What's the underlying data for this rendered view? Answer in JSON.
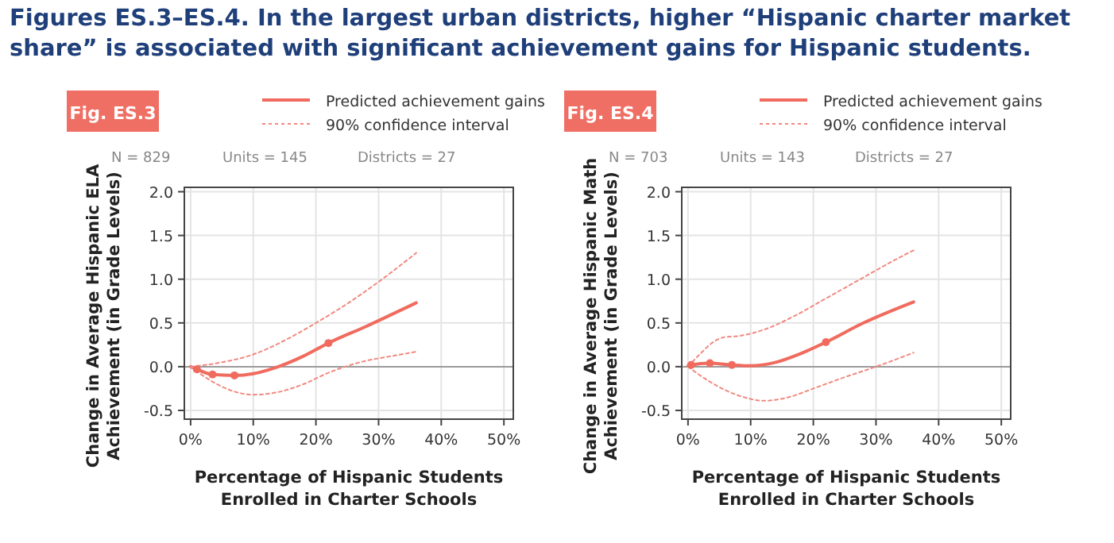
{
  "chart_data": [
    {
      "type": "line",
      "title": "Figures ES.3–ES.4. In the largest urban districts, higher “Hispanic charter market share” is associated with significant achievement gains for Hispanic students.",
      "subtitle": "Fig. ES.3",
      "annotations": [
        "N = 829",
        "Units = 145",
        "Districts = 27"
      ],
      "xlabel": "Percentage of Hispanic Students Enrolled in Charter Schools",
      "ylabel": "Change in Average Hispanic ELA Achievement (in Grade Levels)",
      "xlim": [
        -1,
        51.5
      ],
      "ylim": [
        -0.6,
        2.05
      ],
      "xticks": [
        {
          "value": 0,
          "label": "0%"
        },
        {
          "value": 10,
          "label": "10%"
        },
        {
          "value": 20,
          "label": "20%"
        },
        {
          "value": 30,
          "label": "30%"
        },
        {
          "value": 40,
          "label": "40%"
        },
        {
          "value": 50,
          "label": "50%"
        }
      ],
      "yticks": [
        {
          "value": -0.5,
          "label": "-0.5"
        },
        {
          "value": 0,
          "label": "0.0"
        },
        {
          "value": 0.5,
          "label": "0.5"
        },
        {
          "value": 1,
          "label": "1.0"
        },
        {
          "value": 1.5,
          "label": "1.5"
        },
        {
          "value": 2,
          "label": "2.0"
        }
      ],
      "grid": true,
      "legend": "top",
      "ref_lines": [
        {
          "axis": "y",
          "value": 0,
          "color": "#9a9a9a"
        }
      ],
      "series": [
        {
          "name": "Predicted achievement gains",
          "color": "#f06b5e",
          "line_style": "solid",
          "x": [
            0,
            1,
            3.5,
            7,
            10,
            14,
            18,
            22,
            28,
            36
          ],
          "values": [
            0,
            -0.03,
            -0.09,
            -0.1,
            -0.08,
            0,
            0.12,
            0.27,
            0.46,
            0.73
          ]
        },
        {
          "name": "90% confidence interval",
          "color": "#f08a80",
          "line_style": "dotted",
          "x": [
            0,
            5,
            10,
            15,
            20,
            25,
            30,
            36
          ],
          "values": [
            0,
            0.05,
            0.14,
            0.3,
            0.5,
            0.72,
            0.97,
            1.3
          ]
        },
        {
          "color": "#f08a80",
          "line_style": "dotted",
          "x": [
            0,
            3,
            6,
            10,
            14,
            18,
            22,
            27,
            32,
            36
          ],
          "values": [
            0,
            -0.15,
            -0.26,
            -0.32,
            -0.29,
            -0.2,
            -0.07,
            0.05,
            0.12,
            0.17
          ]
        },
        {
          "type": "scatter",
          "marker": "circle",
          "color": "#f06b5e",
          "x": [
            1,
            3.5,
            7,
            22
          ],
          "values": [
            -0.03,
            -0.09,
            -0.1,
            0.27
          ]
        }
      ]
    },
    {
      "type": "line",
      "subtitle": "Fig. ES.4",
      "annotations": [
        "N = 703",
        "Units = 143",
        "Districts = 27"
      ],
      "xlabel": "Percentage of Hispanic Students Enrolled in Charter Schools",
      "ylabel": "Change in Average Hispanic Math Achievement (in Grade Levels)",
      "xlim": [
        -1,
        51.5
      ],
      "ylim": [
        -0.6,
        2.05
      ],
      "xticks": [
        {
          "value": 0,
          "label": "0%"
        },
        {
          "value": 10,
          "label": "10%"
        },
        {
          "value": 20,
          "label": "20%"
        },
        {
          "value": 30,
          "label": "30%"
        },
        {
          "value": 40,
          "label": "40%"
        },
        {
          "value": 50,
          "label": "50%"
        }
      ],
      "yticks": [
        {
          "value": -0.5,
          "label": "-0.5"
        },
        {
          "value": 0,
          "label": "0.0"
        },
        {
          "value": 0.5,
          "label": "0.5"
        },
        {
          "value": 1,
          "label": "1.0"
        },
        {
          "value": 1.5,
          "label": "1.5"
        },
        {
          "value": 2,
          "label": "2.0"
        }
      ],
      "grid": true,
      "legend": "top",
      "ref_lines": [
        {
          "axis": "y",
          "value": 0,
          "color": "#9a9a9a"
        }
      ],
      "series": [
        {
          "name": "Predicted achievement gains",
          "color": "#f06b5e",
          "line_style": "solid",
          "x": [
            0,
            0.5,
            3.5,
            7,
            10,
            14,
            18,
            22,
            28,
            36
          ],
          "values": [
            0.01,
            0.02,
            0.04,
            0.02,
            0.01,
            0.05,
            0.15,
            0.28,
            0.5,
            0.74
          ]
        },
        {
          "name": "90% confidence interval",
          "color": "#f08a80",
          "line_style": "dotted",
          "x": [
            0,
            2,
            4,
            6,
            8,
            12,
            17,
            22,
            28,
            33,
            36
          ],
          "values": [
            0,
            0.15,
            0.28,
            0.34,
            0.35,
            0.42,
            0.58,
            0.78,
            1.02,
            1.22,
            1.33
          ]
        },
        {
          "color": "#f08a80",
          "line_style": "dotted",
          "x": [
            0,
            3,
            6,
            9,
            12,
            16,
            20,
            25,
            30,
            36
          ],
          "values": [
            0,
            -0.15,
            -0.27,
            -0.35,
            -0.39,
            -0.35,
            -0.25,
            -0.12,
            0,
            0.16
          ]
        },
        {
          "type": "scatter",
          "marker": "circle",
          "color": "#f06b5e",
          "x": [
            0.5,
            3.5,
            7,
            22
          ],
          "values": [
            0.02,
            0.04,
            0.02,
            0.28
          ]
        }
      ]
    }
  ]
}
